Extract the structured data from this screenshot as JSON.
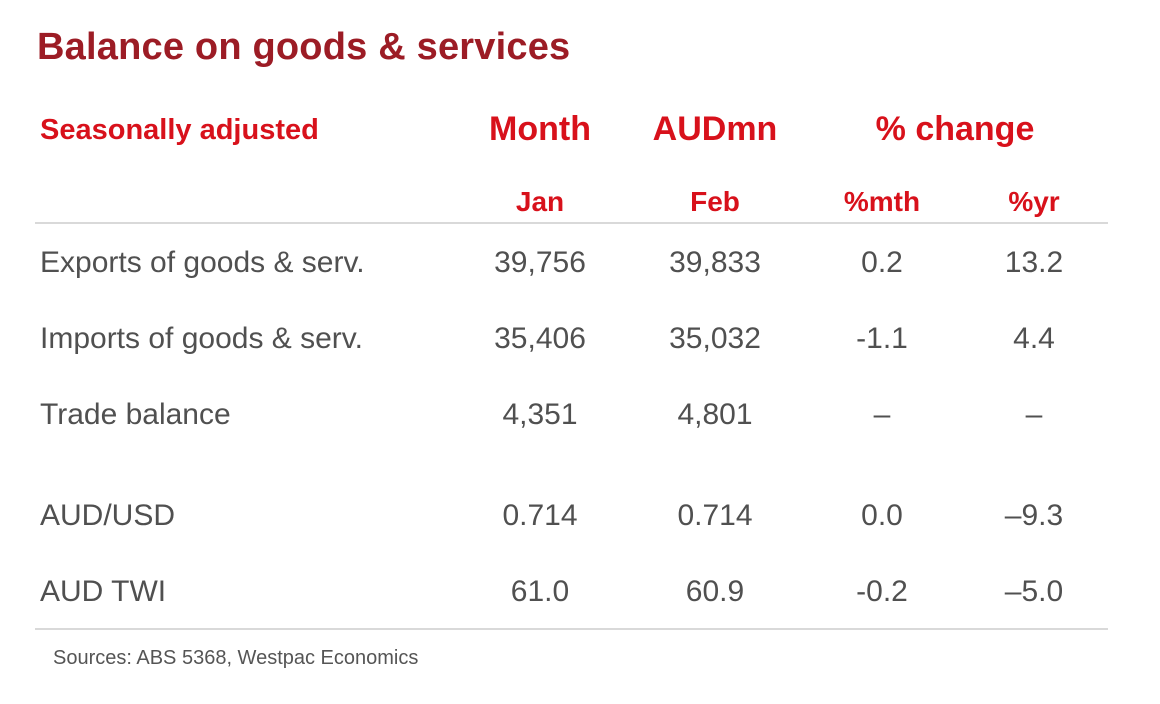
{
  "title": "Balance on goods & services",
  "header": {
    "section_label": "Seasonally adjusted",
    "month_label": "Month",
    "unit_label": "AUDmn",
    "change_label": "% change",
    "col_jan": "Jan",
    "col_feb": "Feb",
    "col_mth": "%mth",
    "col_yr": "%yr"
  },
  "rows": [
    {
      "label": "Exports of goods & serv.",
      "jan": "39,756",
      "feb": "39,833",
      "mth": "0.2",
      "yr": "13.2"
    },
    {
      "label": "Imports of goods & serv.",
      "jan": "35,406",
      "feb": "35,032",
      "mth": "-1.1",
      "yr": "4.4"
    },
    {
      "label": "Trade balance",
      "jan": "4,351",
      "feb": "4,801",
      "mth": "–",
      "yr": "–"
    },
    {
      "label": "AUD/USD",
      "jan": "0.714",
      "feb": "0.714",
      "mth": "0.0",
      "yr": "–9.3"
    },
    {
      "label": "AUD TWI",
      "jan": "61.0",
      "feb": "60.9",
      "mth": "-0.2",
      "yr": "–5.0"
    }
  ],
  "source": "Sources: ABS 5368, Westpac Economics",
  "colors": {
    "title": "#9c1c25",
    "header": "#d8111b",
    "text": "#505050",
    "rule": "#d9d9d9"
  }
}
